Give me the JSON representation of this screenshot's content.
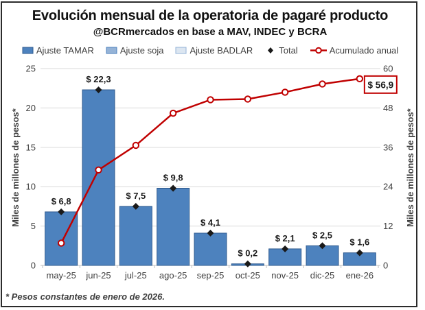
{
  "title": "Evolución mensual de la operatoria de pagaré producto",
  "subtitle": "@BCRmercados en base a MAV, INDEC y BCRA",
  "footnote": "* Pesos constantes de enero de 2026.",
  "colors": {
    "bar_fill": "#4d82be",
    "bar_border": "#2f5b8f",
    "soja_fill": "#95b3d7",
    "soja_border": "#4d82be",
    "badlar_fill": "#dce6f1",
    "badlar_border": "#95b3d7",
    "line_red": "#c00000",
    "diamond_black": "#1a1a1a",
    "grid": "#d9d9d9",
    "axis_line": "#bfbfbf",
    "tick_text": "#404040",
    "label_text": "#1a1a1a"
  },
  "legend": [
    {
      "label": "Ajuste TAMAR",
      "marker": "square",
      "fill": "#4d82be",
      "border": "#2f5b8f"
    },
    {
      "label": "Ajuste soja",
      "marker": "square",
      "fill": "#95b3d7",
      "border": "#4d82be"
    },
    {
      "label": "Ajuste BADLAR",
      "marker": "square",
      "fill": "#dce6f1",
      "border": "#95b3d7"
    },
    {
      "label": "Total",
      "marker": "diamond",
      "fill": "#1a1a1a"
    },
    {
      "label": "Acumulado anual",
      "marker": "line-circle",
      "fill": "#c00000"
    }
  ],
  "chart_data": {
    "type": "combo-bar-line",
    "categories": [
      "may-25",
      "jun-25",
      "jul-25",
      "ago-25",
      "sep-25",
      "oct-25",
      "nov-25",
      "dic-25",
      "ene-26"
    ],
    "series": [
      {
        "name": "Ajuste TAMAR",
        "type": "bar",
        "axis": "left",
        "values": [
          6.8,
          22.3,
          7.5,
          9.8,
          4.1,
          0.2,
          2.1,
          2.5,
          1.6
        ]
      },
      {
        "name": "Ajuste soja",
        "type": "bar",
        "axis": "left",
        "values": [
          0,
          0,
          0,
          0,
          0,
          0,
          0,
          0,
          0
        ]
      },
      {
        "name": "Ajuste BADLAR",
        "type": "bar",
        "axis": "left",
        "values": [
          0,
          0,
          0,
          0,
          0,
          0,
          0,
          0,
          0
        ]
      },
      {
        "name": "Total",
        "type": "point-diamond",
        "axis": "left",
        "values": [
          6.8,
          22.3,
          7.5,
          9.8,
          4.1,
          0.2,
          2.1,
          2.5,
          1.6
        ]
      },
      {
        "name": "Acumulado anual",
        "type": "line",
        "axis": "right",
        "values": [
          6.8,
          29.1,
          36.6,
          46.4,
          50.5,
          50.7,
          52.8,
          55.3,
          56.9
        ]
      }
    ],
    "total_labels": [
      "$ 6,8",
      "$ 22,3",
      "$ 7,5",
      "$ 9,8",
      "$ 4,1",
      "$ 0,2",
      "$ 2,1",
      "$ 2,5",
      "$ 1,6"
    ],
    "left_axis": {
      "title": "Miles de millones de pesos*",
      "ticks": [
        0,
        5,
        10,
        15,
        20,
        25
      ],
      "range": [
        0,
        25
      ]
    },
    "right_axis": {
      "title": "Miles de millones de pesos*",
      "ticks": [
        0,
        12,
        24,
        36,
        48,
        60
      ],
      "range": [
        0,
        60
      ]
    },
    "annotation": {
      "text": "$ 56,9",
      "at_category": "ene-26",
      "value": 56.9
    },
    "grid": true,
    "legend_position": "top"
  }
}
